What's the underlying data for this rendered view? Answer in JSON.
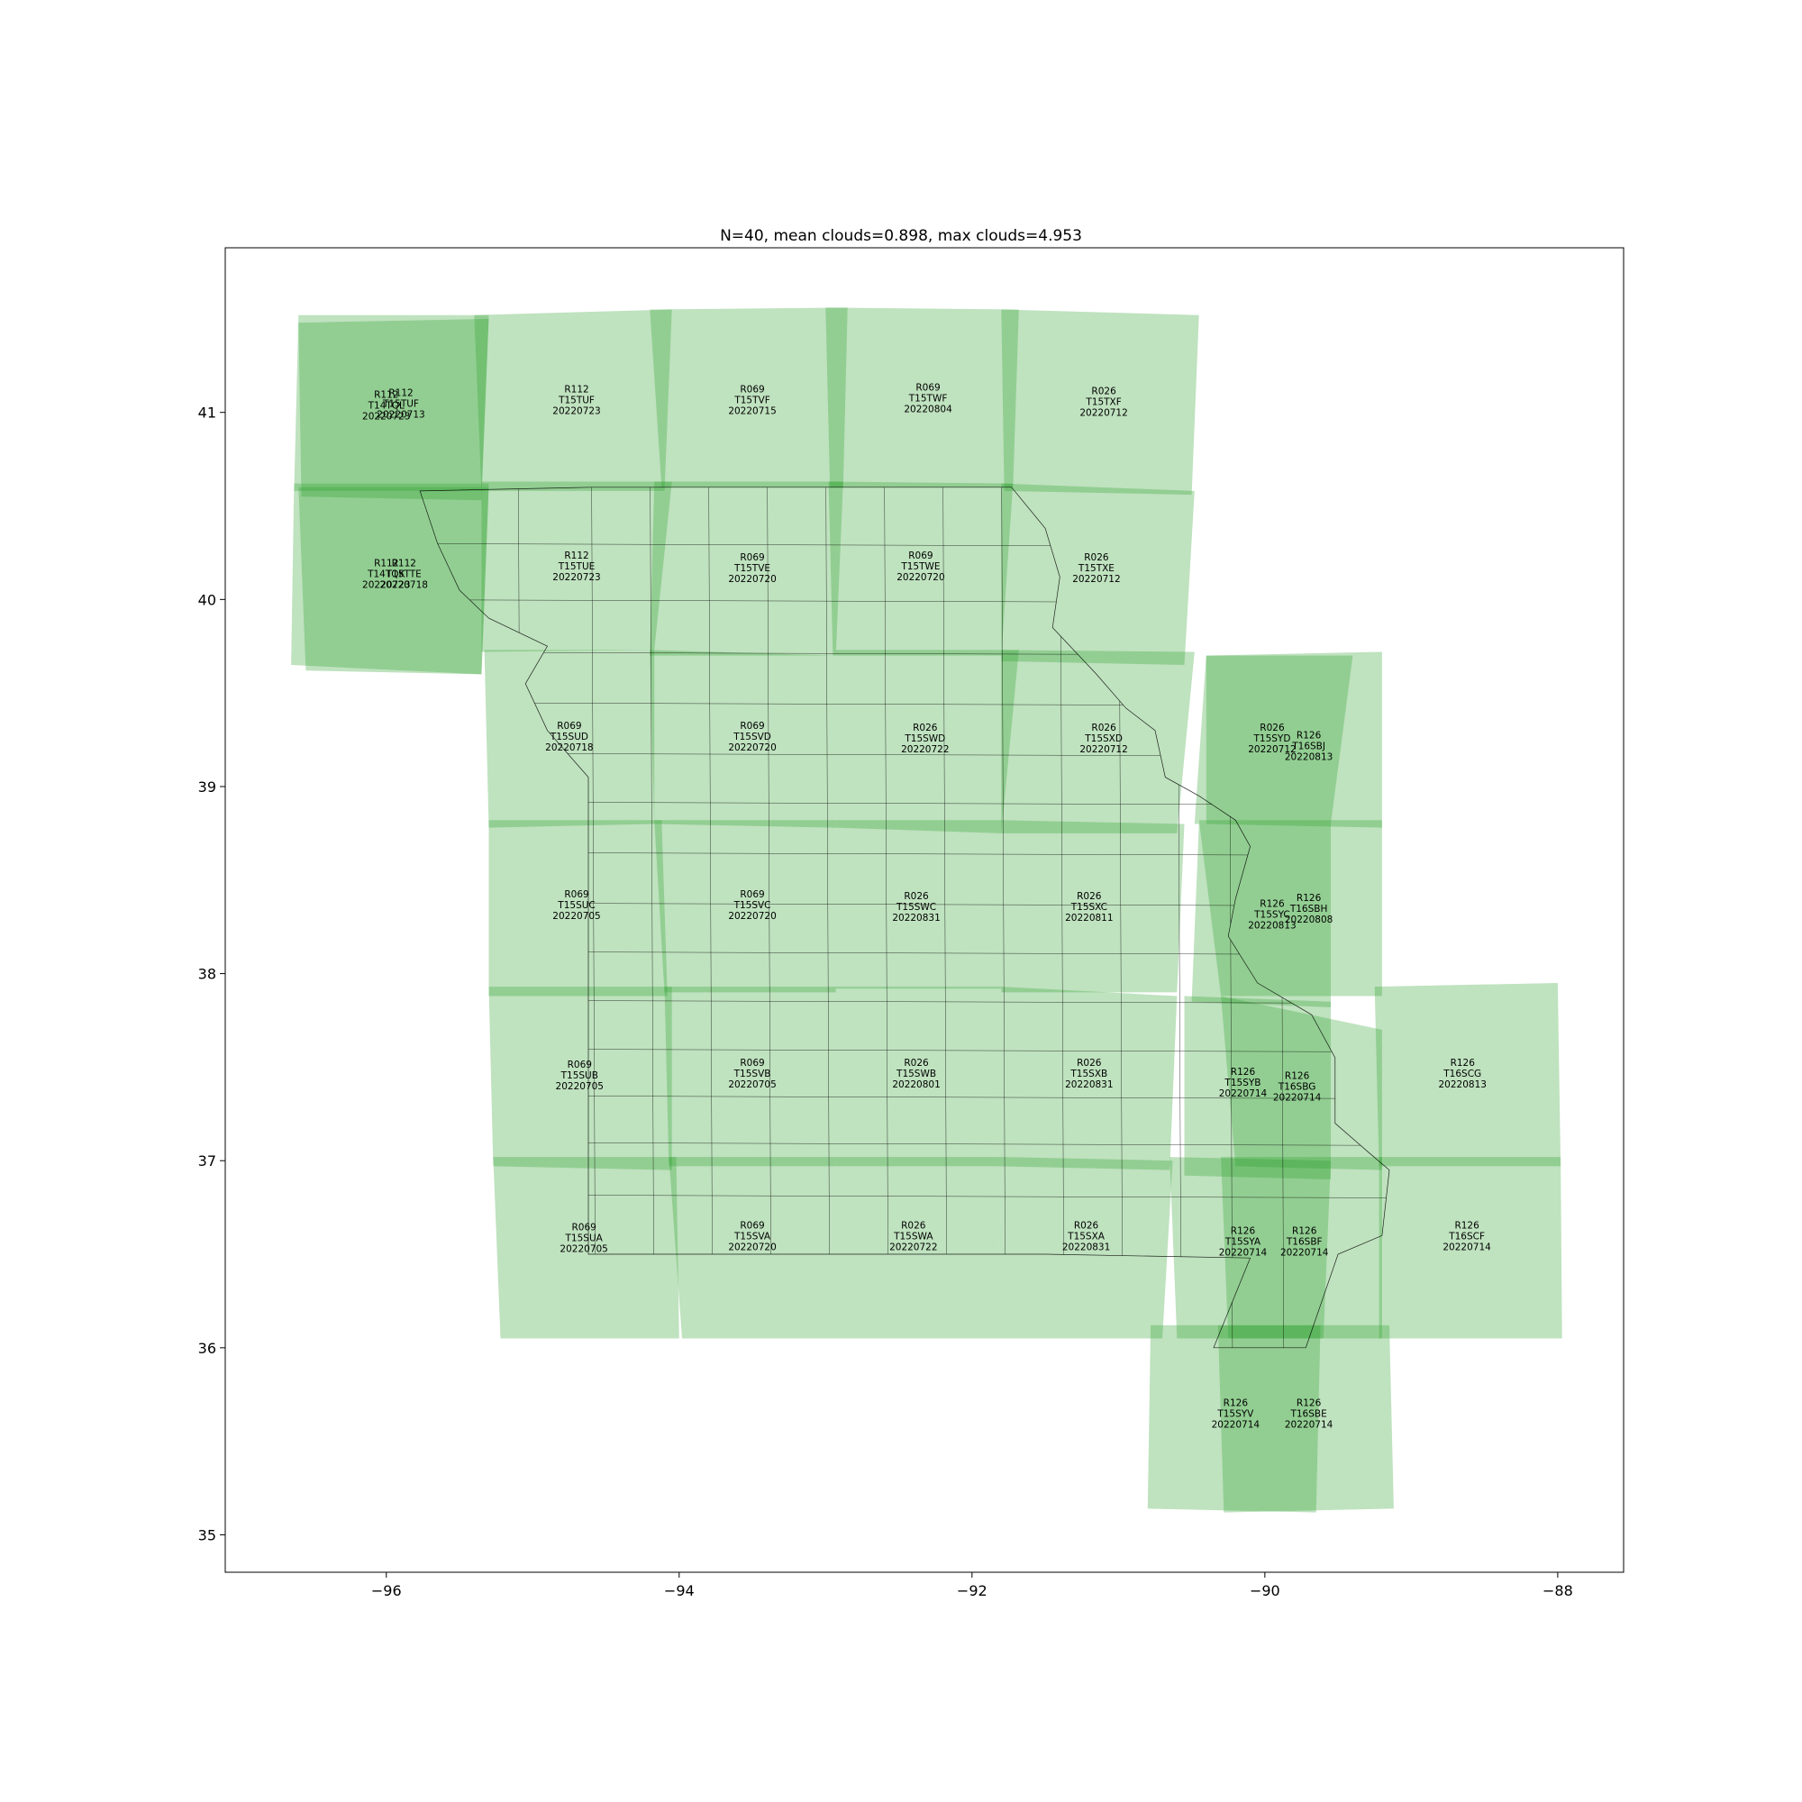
{
  "title": "N=40, mean clouds=0.898, max clouds=4.953",
  "axes": {
    "xlim": [
      -97.1,
      -87.55
    ],
    "ylim": [
      34.8,
      41.88
    ],
    "x_ticks": [
      -96,
      -94,
      -92,
      -90,
      -88
    ],
    "y_ticks": [
      35,
      36,
      37,
      38,
      39,
      40,
      41
    ],
    "x_tick_labels": [
      "−96",
      "−94",
      "−92",
      "−90",
      "−88"
    ],
    "y_tick_labels": [
      "35",
      "36",
      "37",
      "38",
      "39",
      "40",
      "41"
    ]
  },
  "colors": {
    "tile_fill": "#2ca02c",
    "boundary": "#000000",
    "frame": "#000000",
    "background": "#ffffff"
  },
  "tile_opacity": 0.3,
  "tiles": [
    {
      "label": [
        "R112",
        "T14TQL",
        "20220723"
      ],
      "center": [
        -96.0,
        41.02
      ],
      "footprint": [
        [
          -96.6,
          41.52
        ],
        [
          -95.3,
          41.52
        ],
        [
          -95.35,
          40.58
        ],
        [
          -96.63,
          40.58
        ]
      ]
    },
    {
      "label": [
        "R112",
        "T15TUF",
        "20220713"
      ],
      "center": [
        -95.9,
        41.03
      ],
      "footprint": [
        [
          -96.6,
          41.48
        ],
        [
          -95.3,
          41.5
        ],
        [
          -95.35,
          40.53
        ],
        [
          -96.58,
          40.55
        ]
      ]
    },
    {
      "label": [
        "R112",
        "T14TQK",
        "20220723"
      ],
      "center": [
        -96.0,
        40.12
      ],
      "footprint": [
        [
          -96.63,
          40.62
        ],
        [
          -95.3,
          40.62
        ],
        [
          -95.35,
          39.6
        ],
        [
          -96.65,
          39.65
        ]
      ]
    },
    {
      "label": [
        "R112",
        "T15TTE",
        "20220718"
      ],
      "center": [
        -95.88,
        40.12
      ],
      "footprint": [
        [
          -96.6,
          40.6
        ],
        [
          -95.3,
          40.6
        ],
        [
          -95.35,
          39.6
        ],
        [
          -96.55,
          39.62
        ]
      ]
    },
    {
      "label": [
        "R112",
        "T15TUF",
        "20220723"
      ],
      "center": [
        -94.7,
        41.05
      ],
      "footprint": [
        [
          -95.4,
          41.52
        ],
        [
          -94.05,
          41.55
        ],
        [
          -94.1,
          40.58
        ],
        [
          -95.35,
          40.58
        ]
      ]
    },
    {
      "label": [
        "R069",
        "T15TVF",
        "20220715"
      ],
      "center": [
        -93.5,
        41.05
      ],
      "footprint": [
        [
          -94.2,
          41.55
        ],
        [
          -92.85,
          41.56
        ],
        [
          -92.88,
          40.6
        ],
        [
          -94.12,
          40.6
        ]
      ]
    },
    {
      "label": [
        "R069",
        "T15TWF",
        "20220804"
      ],
      "center": [
        -92.3,
        41.06
      ],
      "footprint": [
        [
          -93.0,
          41.56
        ],
        [
          -91.68,
          41.55
        ],
        [
          -91.72,
          40.6
        ],
        [
          -92.97,
          40.6
        ]
      ]
    },
    {
      "label": [
        "R026",
        "T15TXF",
        "20220712"
      ],
      "center": [
        -91.1,
        41.04
      ],
      "footprint": [
        [
          -91.8,
          41.55
        ],
        [
          -90.45,
          41.52
        ],
        [
          -90.5,
          40.56
        ],
        [
          -91.78,
          40.58
        ]
      ]
    },
    {
      "label": [
        "R112",
        "T15TUE",
        "20220723"
      ],
      "center": [
        -94.7,
        40.16
      ],
      "footprint": [
        [
          -95.35,
          40.63
        ],
        [
          -94.05,
          40.63
        ],
        [
          -94.17,
          39.73
        ],
        [
          -95.35,
          39.72
        ]
      ]
    },
    {
      "label": [
        "R069",
        "T15TVE",
        "20220720"
      ],
      "center": [
        -93.5,
        40.15
      ],
      "footprint": [
        [
          -94.17,
          40.63
        ],
        [
          -92.88,
          40.63
        ],
        [
          -92.93,
          39.7
        ],
        [
          -94.2,
          39.7
        ]
      ]
    },
    {
      "label": [
        "R069",
        "T15TWE",
        "20220720"
      ],
      "center": [
        -92.35,
        40.16
      ],
      "footprint": [
        [
          -92.98,
          40.63
        ],
        [
          -91.72,
          40.62
        ],
        [
          -91.8,
          39.7
        ],
        [
          -92.95,
          39.7
        ]
      ]
    },
    {
      "label": [
        "R026",
        "T15TXE",
        "20220712"
      ],
      "center": [
        -91.15,
        40.15
      ],
      "footprint": [
        [
          -91.8,
          40.62
        ],
        [
          -90.48,
          40.58
        ],
        [
          -90.55,
          39.65
        ],
        [
          -91.8,
          39.67
        ]
      ]
    },
    {
      "label": [
        "R069",
        "T15SUD",
        "20220718"
      ],
      "center": [
        -94.75,
        39.25
      ],
      "footprint": [
        [
          -95.33,
          39.73
        ],
        [
          -94.17,
          39.73
        ],
        [
          -94.17,
          38.8
        ],
        [
          -95.3,
          38.78
        ]
      ]
    },
    {
      "label": [
        "R069",
        "T15SVD",
        "20220720"
      ],
      "center": [
        -93.5,
        39.25
      ],
      "footprint": [
        [
          -94.2,
          39.73
        ],
        [
          -92.93,
          39.7
        ],
        [
          -92.93,
          38.78
        ],
        [
          -94.17,
          38.8
        ]
      ]
    },
    {
      "label": [
        "R026",
        "T15SWD",
        "20220722"
      ],
      "center": [
        -92.32,
        39.24
      ],
      "footprint": [
        [
          -92.93,
          39.73
        ],
        [
          -91.68,
          39.73
        ],
        [
          -91.8,
          38.75
        ],
        [
          -92.93,
          38.78
        ]
      ]
    },
    {
      "label": [
        "R026",
        "T15SXD",
        "20220712"
      ],
      "center": [
        -91.1,
        39.24
      ],
      "footprint": [
        [
          -91.8,
          39.73
        ],
        [
          -90.48,
          39.72
        ],
        [
          -90.6,
          38.75
        ],
        [
          -91.8,
          38.75
        ]
      ]
    },
    {
      "label": [
        "R026",
        "T15SYD",
        "20220712"
      ],
      "center": [
        -89.95,
        39.24
      ],
      "footprint": [
        [
          -90.4,
          39.7
        ],
        [
          -89.4,
          39.7
        ],
        [
          -89.55,
          38.8
        ],
        [
          -90.48,
          38.8
        ]
      ]
    },
    {
      "label": [
        "R126",
        "T16SBJ",
        "20220813"
      ],
      "center": [
        -89.7,
        39.2
      ],
      "footprint": [
        [
          -90.4,
          39.7
        ],
        [
          -89.2,
          39.72
        ],
        [
          -89.2,
          38.78
        ],
        [
          -90.4,
          38.8
        ]
      ]
    },
    {
      "label": [
        "R069",
        "T15SUC",
        "20220705"
      ],
      "center": [
        -94.7,
        38.35
      ],
      "footprint": [
        [
          -95.3,
          38.82
        ],
        [
          -94.12,
          38.82
        ],
        [
          -94.08,
          37.88
        ],
        [
          -95.3,
          37.88
        ]
      ]
    },
    {
      "label": [
        "R069",
        "T15SVC",
        "20220720"
      ],
      "center": [
        -93.5,
        38.35
      ],
      "footprint": [
        [
          -94.17,
          38.82
        ],
        [
          -92.93,
          38.82
        ],
        [
          -92.93,
          37.9
        ],
        [
          -94.1,
          37.9
        ]
      ]
    },
    {
      "label": [
        "R026",
        "T15SWC",
        "20220831"
      ],
      "center": [
        -92.38,
        38.34
      ],
      "footprint": [
        [
          -92.93,
          38.82
        ],
        [
          -91.8,
          38.82
        ],
        [
          -91.8,
          37.92
        ],
        [
          -92.93,
          37.92
        ]
      ]
    },
    {
      "label": [
        "R026",
        "T15SXC",
        "20220811"
      ],
      "center": [
        -91.2,
        38.34
      ],
      "footprint": [
        [
          -91.8,
          38.82
        ],
        [
          -90.55,
          38.8
        ],
        [
          -90.6,
          37.9
        ],
        [
          -91.8,
          37.9
        ]
      ]
    },
    {
      "label": [
        "R126",
        "T15SYC",
        "20220813"
      ],
      "center": [
        -89.95,
        38.3
      ],
      "footprint": [
        [
          -90.45,
          38.8
        ],
        [
          -89.55,
          38.8
        ],
        [
          -89.55,
          37.82
        ],
        [
          -90.5,
          37.85
        ]
      ]
    },
    {
      "label": [
        "R126",
        "T16SBH",
        "20220808"
      ],
      "center": [
        -89.7,
        38.33
      ],
      "footprint": [
        [
          -90.45,
          38.82
        ],
        [
          -89.2,
          38.82
        ],
        [
          -89.2,
          37.88
        ],
        [
          -90.3,
          37.88
        ]
      ]
    },
    {
      "label": [
        "R069",
        "T15SUB",
        "20220705"
      ],
      "center": [
        -94.68,
        37.44
      ],
      "footprint": [
        [
          -95.3,
          37.93
        ],
        [
          -94.05,
          37.93
        ],
        [
          -94.05,
          36.95
        ],
        [
          -95.27,
          36.97
        ]
      ]
    },
    {
      "label": [
        "R069",
        "T15SVB",
        "20220705"
      ],
      "center": [
        -93.5,
        37.45
      ],
      "footprint": [
        [
          -94.1,
          37.93
        ],
        [
          -92.93,
          37.93
        ],
        [
          -92.93,
          36.97
        ],
        [
          -94.07,
          36.97
        ]
      ]
    },
    {
      "label": [
        "R026",
        "T15SWB",
        "20220801"
      ],
      "center": [
        -92.38,
        37.45
      ],
      "footprint": [
        [
          -92.93,
          37.93
        ],
        [
          -91.8,
          37.93
        ],
        [
          -91.82,
          36.97
        ],
        [
          -92.93,
          36.97
        ]
      ]
    },
    {
      "label": [
        "R026",
        "T15SXB",
        "20220831"
      ],
      "center": [
        -91.2,
        37.45
      ],
      "footprint": [
        [
          -91.8,
          37.93
        ],
        [
          -90.6,
          37.88
        ],
        [
          -90.65,
          36.95
        ],
        [
          -91.82,
          36.97
        ]
      ]
    },
    {
      "label": [
        "R126",
        "T15SYB",
        "20220714"
      ],
      "center": [
        -90.15,
        37.4
      ],
      "footprint": [
        [
          -90.55,
          37.88
        ],
        [
          -89.55,
          37.85
        ],
        [
          -89.55,
          36.9
        ],
        [
          -90.55,
          36.92
        ]
      ]
    },
    {
      "label": [
        "R126",
        "T16SBG",
        "20220714"
      ],
      "center": [
        -89.78,
        37.38
      ],
      "footprint": [
        [
          -90.3,
          37.88
        ],
        [
          -89.2,
          37.7
        ],
        [
          -89.2,
          36.95
        ],
        [
          -90.2,
          36.97
        ]
      ]
    },
    {
      "label": [
        "R126",
        "T16SCG",
        "20220813"
      ],
      "center": [
        -88.65,
        37.45
      ],
      "footprint": [
        [
          -89.25,
          37.93
        ],
        [
          -88.0,
          37.95
        ],
        [
          -87.98,
          36.97
        ],
        [
          -89.22,
          36.97
        ]
      ]
    },
    {
      "label": [
        "R069",
        "T15SUA",
        "20220705"
      ],
      "center": [
        -94.65,
        36.57
      ],
      "footprint": [
        [
          -95.27,
          37.02
        ],
        [
          -94.02,
          37.02
        ],
        [
          -94.0,
          36.05
        ],
        [
          -95.22,
          36.05
        ]
      ]
    },
    {
      "label": [
        "R069",
        "T15SVA",
        "20220720"
      ],
      "center": [
        -93.5,
        36.58
      ],
      "footprint": [
        [
          -94.07,
          37.02
        ],
        [
          -92.93,
          37.02
        ],
        [
          -92.93,
          36.05
        ],
        [
          -93.98,
          36.05
        ]
      ]
    },
    {
      "label": [
        "R026",
        "T15SWA",
        "20220722"
      ],
      "center": [
        -92.4,
        36.58
      ],
      "footprint": [
        [
          -92.93,
          37.02
        ],
        [
          -91.8,
          37.02
        ],
        [
          -91.82,
          36.05
        ],
        [
          -92.93,
          36.05
        ]
      ]
    },
    {
      "label": [
        "R026",
        "T15SXA",
        "20220831"
      ],
      "center": [
        -91.22,
        36.58
      ],
      "footprint": [
        [
          -91.8,
          37.02
        ],
        [
          -90.63,
          37.0
        ],
        [
          -90.7,
          36.05
        ],
        [
          -91.82,
          36.05
        ]
      ]
    },
    {
      "label": [
        "R126",
        "T15SYA",
        "20220714"
      ],
      "center": [
        -90.15,
        36.55
      ],
      "footprint": [
        [
          -90.65,
          37.02
        ],
        [
          -89.55,
          37.0
        ],
        [
          -89.6,
          36.05
        ],
        [
          -90.6,
          36.05
        ]
      ]
    },
    {
      "label": [
        "R126",
        "T16SBF",
        "20220714"
      ],
      "center": [
        -89.73,
        36.55
      ],
      "footprint": [
        [
          -90.3,
          37.02
        ],
        [
          -89.2,
          37.02
        ],
        [
          -89.2,
          36.05
        ],
        [
          -90.25,
          36.05
        ]
      ]
    },
    {
      "label": [
        "R126",
        "T16SCF",
        "20220714"
      ],
      "center": [
        -88.62,
        36.58
      ],
      "footprint": [
        [
          -89.22,
          37.02
        ],
        [
          -87.98,
          37.02
        ],
        [
          -87.97,
          36.05
        ],
        [
          -89.22,
          36.05
        ]
      ]
    },
    {
      "label": [
        "R126",
        "T15SYV",
        "20220714"
      ],
      "center": [
        -90.2,
        35.63
      ],
      "footprint": [
        [
          -90.78,
          36.12
        ],
        [
          -89.62,
          36.12
        ],
        [
          -89.65,
          35.12
        ],
        [
          -90.8,
          35.14
        ]
      ]
    },
    {
      "label": [
        "R126",
        "T16SBE",
        "20220714"
      ],
      "center": [
        -89.7,
        35.63
      ],
      "footprint": [
        [
          -90.32,
          36.12
        ],
        [
          -89.15,
          36.12
        ],
        [
          -89.12,
          35.14
        ],
        [
          -90.28,
          35.12
        ]
      ]
    }
  ],
  "state_outline": [
    [
      -95.77,
      40.58
    ],
    [
      -94.6,
      40.6
    ],
    [
      -93.5,
      40.6
    ],
    [
      -92.3,
      40.6
    ],
    [
      -91.73,
      40.6
    ],
    [
      -91.5,
      40.38
    ],
    [
      -91.4,
      40.12
    ],
    [
      -91.45,
      39.85
    ],
    [
      -91.15,
      39.6
    ],
    [
      -90.95,
      39.42
    ],
    [
      -90.75,
      39.3
    ],
    [
      -90.68,
      39.05
    ],
    [
      -90.45,
      38.95
    ],
    [
      -90.2,
      38.82
    ],
    [
      -90.1,
      38.68
    ],
    [
      -90.2,
      38.4
    ],
    [
      -90.25,
      38.2
    ],
    [
      -90.05,
      37.95
    ],
    [
      -89.68,
      37.78
    ],
    [
      -89.52,
      37.55
    ],
    [
      -89.52,
      37.2
    ],
    [
      -89.3,
      37.05
    ],
    [
      -89.15,
      36.95
    ],
    [
      -89.2,
      36.6
    ],
    [
      -89.5,
      36.5
    ],
    [
      -89.72,
      36.0
    ],
    [
      -90.35,
      36.0
    ],
    [
      -90.1,
      36.48
    ],
    [
      -91.5,
      36.5
    ],
    [
      -93.0,
      36.5
    ],
    [
      -94.62,
      36.5
    ],
    [
      -94.62,
      37.0
    ],
    [
      -94.62,
      38.0
    ],
    [
      -94.62,
      39.05
    ],
    [
      -94.9,
      39.3
    ],
    [
      -95.05,
      39.55
    ],
    [
      -94.9,
      39.75
    ],
    [
      -95.3,
      39.9
    ],
    [
      -95.5,
      40.05
    ],
    [
      -95.65,
      40.3
    ],
    [
      -95.77,
      40.58
    ]
  ],
  "county_lines": {
    "rows": [
      40.3,
      40.0,
      39.72,
      39.45,
      39.18,
      38.92,
      38.65,
      38.38,
      38.12,
      37.86,
      37.6,
      37.35,
      37.1,
      36.82
    ],
    "cols": [
      -95.1,
      -94.6,
      -94.2,
      -93.8,
      -93.4,
      -93.0,
      -92.6,
      -92.2,
      -91.8,
      -91.4,
      -91.0,
      -90.6,
      -90.25,
      -89.9
    ]
  }
}
